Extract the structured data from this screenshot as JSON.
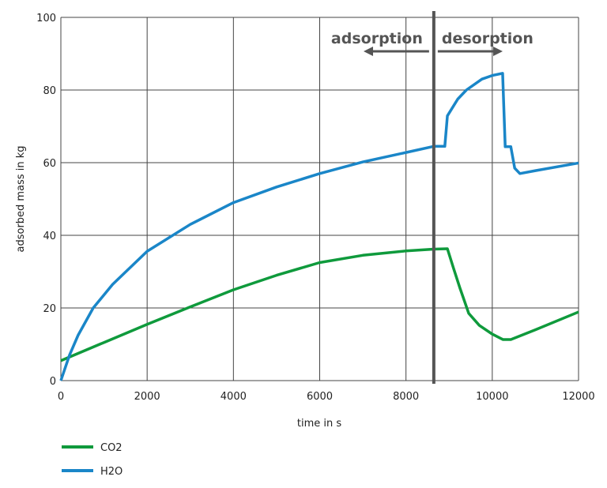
{
  "chart_data": {
    "type": "line",
    "title": "",
    "xlabel": "time in s",
    "ylabel": "adsorbed mass in kg",
    "xlim": [
      0,
      12000
    ],
    "ylim": [
      0,
      100
    ],
    "xticks": [
      0,
      2000,
      4000,
      6000,
      8000,
      10000,
      12000
    ],
    "yticks": [
      0,
      20,
      40,
      60,
      80,
      100
    ],
    "grid": true,
    "legend_placement": "bottom-left",
    "annotations": {
      "divider_x": 8645,
      "left_label": "adsorption",
      "right_label": "desorption"
    },
    "series": [
      {
        "name": "CO2",
        "color": "#0f9a3c",
        "points": [
          [
            0,
            5.5
          ],
          [
            1000,
            10.5
          ],
          [
            2000,
            15.5
          ],
          [
            3000,
            20.3
          ],
          [
            4000,
            25
          ],
          [
            5000,
            29
          ],
          [
            6000,
            32.5
          ],
          [
            7000,
            34.5
          ],
          [
            8000,
            35.7
          ],
          [
            8645,
            36.2
          ],
          [
            8960,
            36.3
          ],
          [
            9100,
            31
          ],
          [
            9250,
            25.5
          ],
          [
            9455,
            18.5
          ],
          [
            9700,
            15.2
          ],
          [
            10000,
            12.8
          ],
          [
            10250,
            11.3
          ],
          [
            10430,
            11.3
          ],
          [
            11000,
            14
          ],
          [
            12000,
            18.9
          ]
        ]
      },
      {
        "name": "H2O",
        "color": "#1a86c8",
        "points": [
          [
            0,
            0
          ],
          [
            200,
            7
          ],
          [
            400,
            12.5
          ],
          [
            750,
            20
          ],
          [
            1200,
            26.5
          ],
          [
            2000,
            35.6
          ],
          [
            3000,
            43
          ],
          [
            4000,
            49
          ],
          [
            5000,
            53.3
          ],
          [
            6000,
            57
          ],
          [
            7000,
            60.2
          ],
          [
            8000,
            62.8
          ],
          [
            8645,
            64.5
          ],
          [
            8900,
            64.5
          ],
          [
            8960,
            72.9
          ],
          [
            9200,
            77.5
          ],
          [
            9400,
            80
          ],
          [
            9760,
            83
          ],
          [
            10000,
            84
          ],
          [
            10240,
            84.6
          ],
          [
            10300,
            64.4
          ],
          [
            10430,
            64.4
          ],
          [
            10520,
            58.5
          ],
          [
            10640,
            57
          ],
          [
            11000,
            57.8
          ],
          [
            12000,
            59.9
          ]
        ]
      }
    ]
  }
}
